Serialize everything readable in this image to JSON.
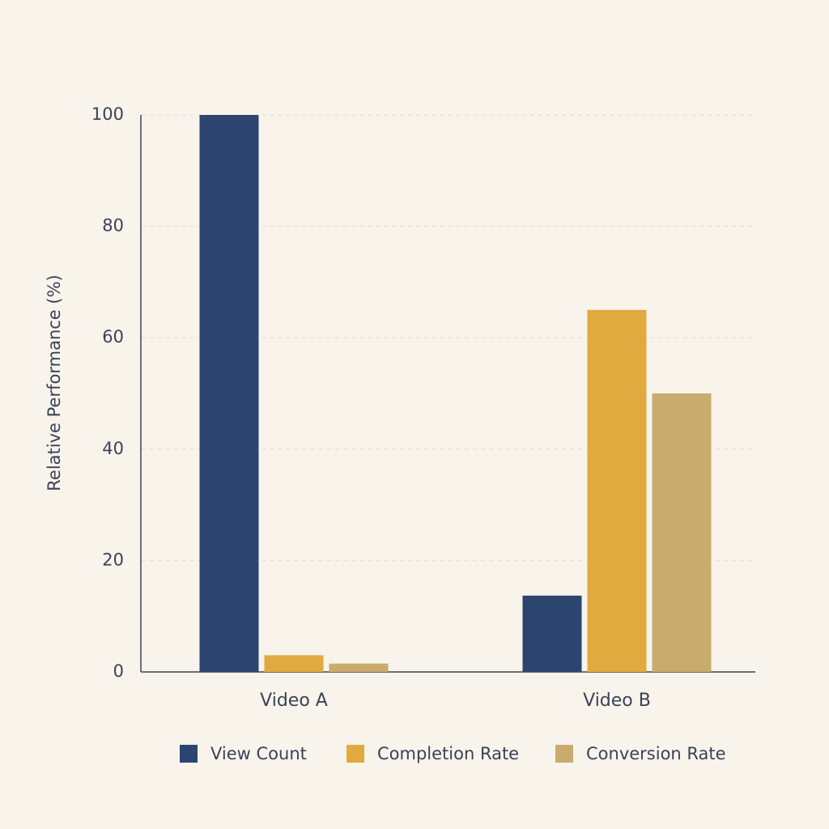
{
  "chart_data": {
    "type": "bar",
    "y_label": "Relative Performance (%)",
    "categories": [
      "Video A",
      "Video B"
    ],
    "series": [
      {
        "name": "View Count",
        "color": "#2b4570",
        "values": [
          100,
          13.7
        ]
      },
      {
        "name": "Completion Rate",
        "color": "#e0aa3e",
        "values": [
          3,
          65
        ]
      },
      {
        "name": "Conversion Rate",
        "color": "#c9ab6e",
        "values": [
          1.5,
          50
        ]
      }
    ],
    "ylim": [
      0,
      100
    ],
    "yticks": [
      0,
      20,
      40,
      60,
      80,
      100
    ],
    "grid": true,
    "legend": "bottom"
  }
}
